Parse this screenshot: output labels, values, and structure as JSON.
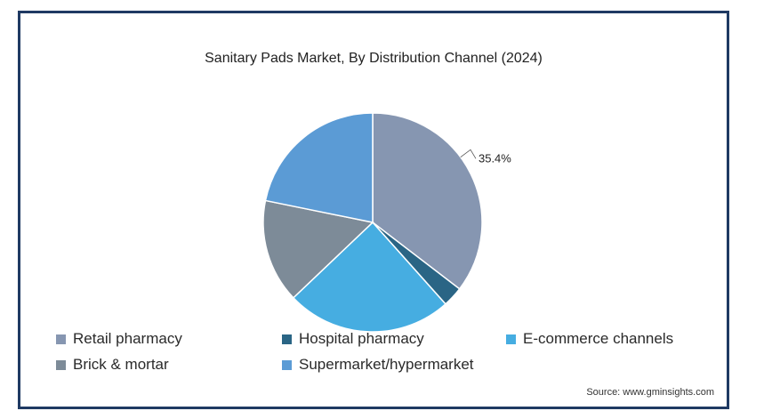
{
  "chart_data": {
    "type": "pie",
    "title": "Sanitary Pads Market, By Distribution Channel (2024)",
    "slices": [
      {
        "label": "Retail pharmacy",
        "value": 35.4,
        "color": "#8696b1",
        "data_label": "35.4%"
      },
      {
        "label": "Hospital pharmacy",
        "value": 3.0,
        "color": "#2a6585",
        "data_label": ""
      },
      {
        "label": "E-commerce channels",
        "value": 24.5,
        "color": "#46ade1",
        "data_label": ""
      },
      {
        "label": "Brick & mortar",
        "value": 15.3,
        "color": "#7d8b98",
        "data_label": ""
      },
      {
        "label": "Supermarket/hypermarket",
        "value": 21.8,
        "color": "#5b9bd5",
        "data_label": ""
      }
    ],
    "start_angle": "top, clockwise",
    "legend_position": "bottom"
  },
  "source": "Source: www.gminsights.com"
}
